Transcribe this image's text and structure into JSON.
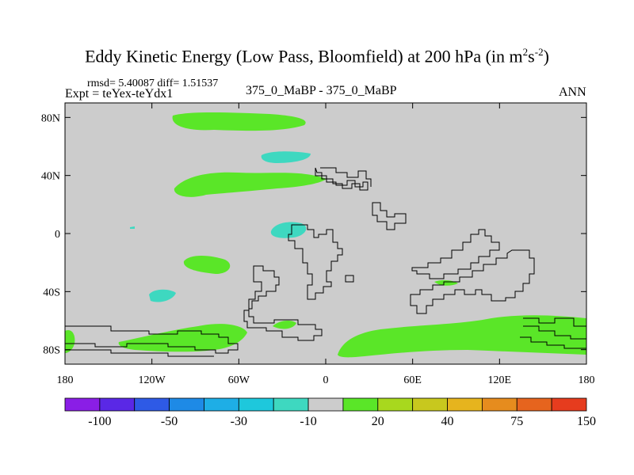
{
  "title": {
    "main": "Eddy Kinetic Energy (Low Pass, Bloomfield) at 200 hPa (in m",
    "sup1": "2",
    "mid": "s",
    "sup2": "-2",
    "end": ")"
  },
  "stats": {
    "rmsd_line": "rmsd= 5.40087 diff= 1.51537"
  },
  "experiment": "Expt = teYex-teYdx1",
  "cases": "375_0_MaBP - 375_0_MaBP",
  "season": "ANN",
  "axes": {
    "lat_ticks": [
      {
        "lat": 80,
        "label": "80N"
      },
      {
        "lat": 40,
        "label": "40N"
      },
      {
        "lat": 0,
        "label": "0"
      },
      {
        "lat": -40,
        "label": "40S"
      },
      {
        "lat": -80,
        "label": "80S"
      }
    ],
    "lon_ticks": [
      {
        "lon": 0,
        "label": "180"
      },
      {
        "lon": 60,
        "label": "120W"
      },
      {
        "lon": 120,
        "label": "60W"
      },
      {
        "lon": 180,
        "label": "0"
      },
      {
        "lon": 240,
        "label": "60E"
      },
      {
        "lon": 300,
        "label": "120E"
      },
      {
        "lon": 360,
        "label": "180"
      }
    ],
    "lat_range": [
      -90,
      90
    ],
    "lon_range": [
      0,
      360
    ]
  },
  "colorbar": {
    "colors": [
      "#8a1ee6",
      "#5a28e6",
      "#2e5ae6",
      "#1e8ae6",
      "#1eaee6",
      "#1ec8dc",
      "#3ed8c0",
      "#cccccc",
      "#5ae628",
      "#a8d81e",
      "#c8c81e",
      "#e6b41e",
      "#e68c1e",
      "#e6641e",
      "#e63c1e"
    ],
    "labels": [
      {
        "after_box": 1,
        "text": "-100"
      },
      {
        "after_box": 3,
        "text": "-50"
      },
      {
        "after_box": 5,
        "text": "-30"
      },
      {
        "after_box": 7,
        "text": "-10"
      },
      {
        "after_box": 9,
        "text": "20"
      },
      {
        "after_box": 11,
        "text": "40"
      },
      {
        "after_box": 13,
        "text": "75"
      },
      {
        "after_box": 15,
        "text": "150"
      }
    ]
  },
  "colors": {
    "background_field": "#cccccc",
    "positive_anomaly": "#5ae628",
    "negative_anomaly": "#3ed8c0",
    "coastline": "#000000"
  }
}
